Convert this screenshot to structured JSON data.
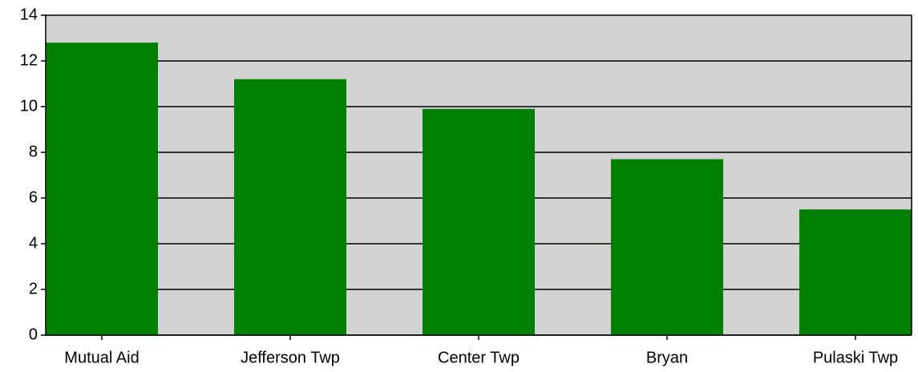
{
  "chart_data": {
    "type": "bar",
    "categories": [
      "Mutual Aid",
      "Jefferson Twp",
      "Center Twp",
      "Bryan",
      "Pulaski Twp"
    ],
    "values": [
      12.8,
      11.2,
      9.9,
      7.7,
      5.5
    ],
    "color": "#008000",
    "ylim": [
      0,
      14
    ],
    "yticks": [
      0,
      2,
      4,
      6,
      8,
      10,
      12,
      14
    ],
    "grid": true
  }
}
